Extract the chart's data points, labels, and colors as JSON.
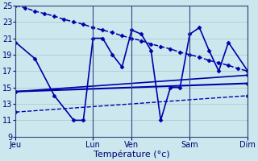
{
  "background_color": "#cce8ee",
  "grid_color": "#aacccc",
  "line_color": "#0000aa",
  "xlabel": "Température (°c)",
  "ylim": [
    9,
    25
  ],
  "yticks": [
    9,
    11,
    13,
    15,
    17,
    19,
    21,
    23,
    25
  ],
  "day_labels": [
    "Jeu",
    "Lun",
    "Ven",
    "Sam",
    "Dim"
  ],
  "day_positions": [
    0,
    8,
    12,
    18,
    24
  ],
  "xlim": [
    0,
    24
  ],
  "series": [
    {
      "x": [
        0,
        1,
        2,
        3,
        4,
        5,
        6,
        7,
        8,
        9,
        10,
        11,
        12,
        13,
        14,
        15,
        16,
        17,
        18,
        19,
        20,
        21,
        22,
        23,
        24
      ],
      "y": [
        25,
        24.7,
        24.3,
        24.0,
        23.7,
        23.3,
        23.0,
        22.7,
        22.3,
        22.0,
        21.7,
        21.3,
        21.0,
        20.7,
        20.3,
        20.0,
        19.7,
        19.3,
        19.0,
        18.7,
        18.3,
        18.0,
        17.7,
        17.3,
        17.0
      ],
      "linestyle": "--",
      "marker": "D",
      "markersize": 2.5,
      "linewidth": 1.1
    },
    {
      "x": [
        0,
        2,
        4,
        6,
        7,
        8,
        9,
        10,
        11,
        12,
        13,
        14,
        15,
        16,
        17,
        18,
        19,
        20,
        21,
        22,
        24
      ],
      "y": [
        20.5,
        18.5,
        14,
        11,
        11,
        21,
        21,
        19,
        17.5,
        22,
        21.5,
        19.5,
        11,
        15,
        15,
        21.5,
        22.3,
        19.5,
        17,
        20.5,
        17
      ],
      "linestyle": "-",
      "marker": "D",
      "markersize": 2.5,
      "linewidth": 1.2
    },
    {
      "x": [
        0,
        24
      ],
      "y": [
        14.5,
        15.5
      ],
      "linestyle": "-",
      "marker": "D",
      "markersize": 2.5,
      "linewidth": 1.5
    },
    {
      "x": [
        0,
        24
      ],
      "y": [
        14.5,
        16.5
      ],
      "linestyle": "-",
      "marker": "D",
      "markersize": 2.5,
      "linewidth": 1.2
    },
    {
      "x": [
        0,
        24
      ],
      "y": [
        12.0,
        14.0
      ],
      "linestyle": "--",
      "marker": "D",
      "markersize": 2.5,
      "linewidth": 1.0
    }
  ]
}
